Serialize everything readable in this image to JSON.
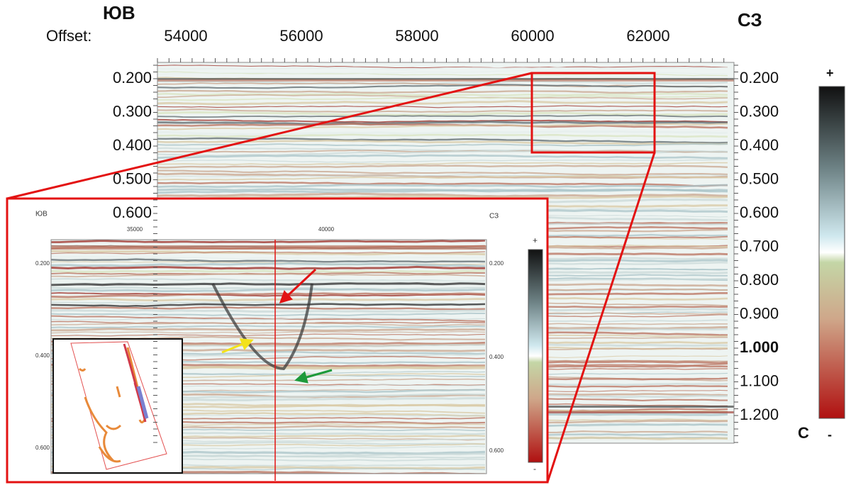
{
  "main": {
    "left_label": "ЮВ",
    "right_label": "СЗ",
    "offset_label": "Offset:",
    "x_ticks": [
      "54000",
      "56000",
      "58000",
      "60000",
      "62000"
    ],
    "y_ticks_left": [
      "0.200",
      "0.300",
      "0.400",
      "0.500",
      "0.600"
    ],
    "y_ticks_right": [
      "0.200",
      "0.300",
      "0.400",
      "0.500",
      "0.600",
      "0.700",
      "0.800",
      "0.900",
      "1.000",
      "1.100",
      "1.200"
    ]
  },
  "colorbar": {
    "top": "+",
    "bottom": "-",
    "unit": "С"
  },
  "inset": {
    "left_label": "ЮВ",
    "right_label": "СЗ",
    "x_ticks": [
      "35000",
      "40000"
    ],
    "y_ticks_left": [
      "0.200",
      "0.400",
      "0.600"
    ],
    "y_ticks_right": [
      "0.200",
      "0.400",
      "0.600"
    ],
    "colorbar_top": "+",
    "colorbar_bottom": "-"
  }
}
